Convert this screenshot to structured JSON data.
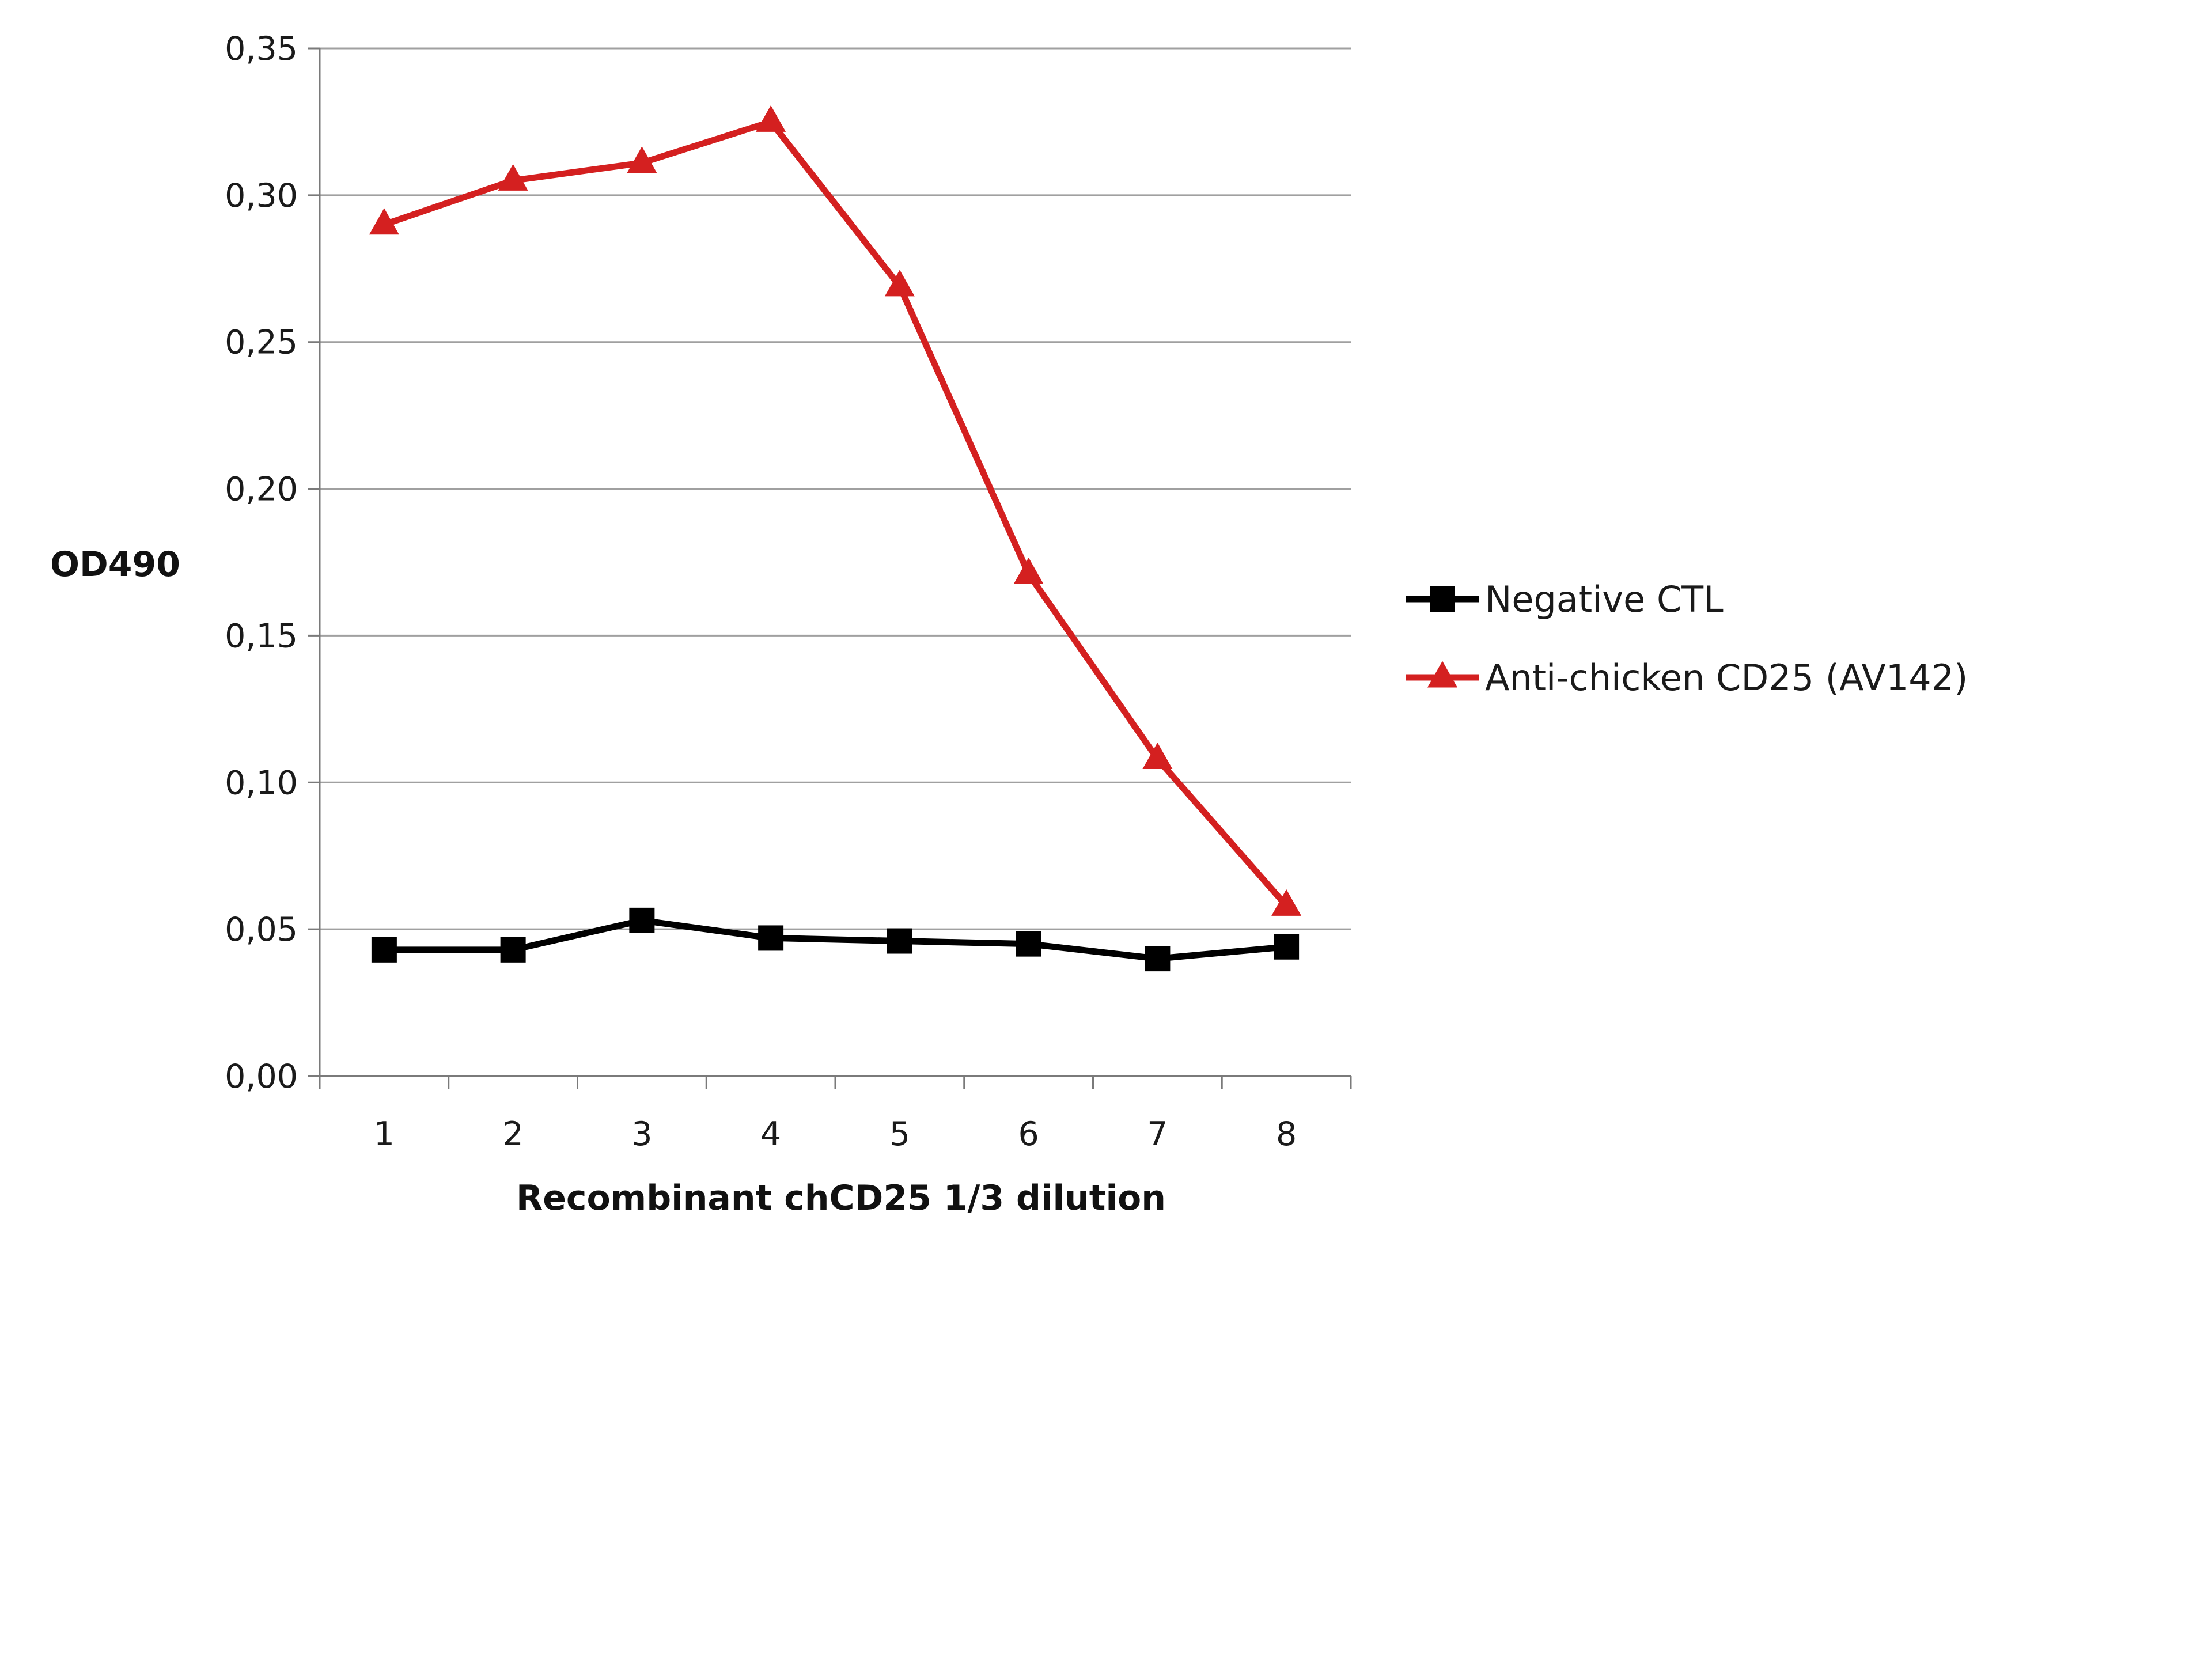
{
  "chart_data": {
    "type": "line",
    "categories": [
      "1",
      "2",
      "3",
      "4",
      "5",
      "6",
      "7",
      "8"
    ],
    "series": [
      {
        "name": "Negative CTL",
        "values": [
          0.043,
          0.043,
          0.053,
          0.047,
          0.046,
          0.045,
          0.04,
          0.044
        ],
        "color": "#000000",
        "marker": "square"
      },
      {
        "name": "Anti-chicken CD25 (AV142)",
        "values": [
          0.29,
          0.305,
          0.311,
          0.325,
          0.269,
          0.171,
          0.108,
          0.058
        ],
        "color": "#d42020",
        "marker": "triangle"
      }
    ],
    "title": "",
    "xlabel": "Recombinant chCD25 1/3 dilution",
    "ylabel": "OD490",
    "ylim": [
      0,
      0.35
    ],
    "yticks": [
      "0,00",
      "0,05",
      "0,10",
      "0,15",
      "0,20",
      "0,25",
      "0,30",
      "0,35"
    ],
    "grid": "horizontal",
    "legend_position": "right"
  }
}
